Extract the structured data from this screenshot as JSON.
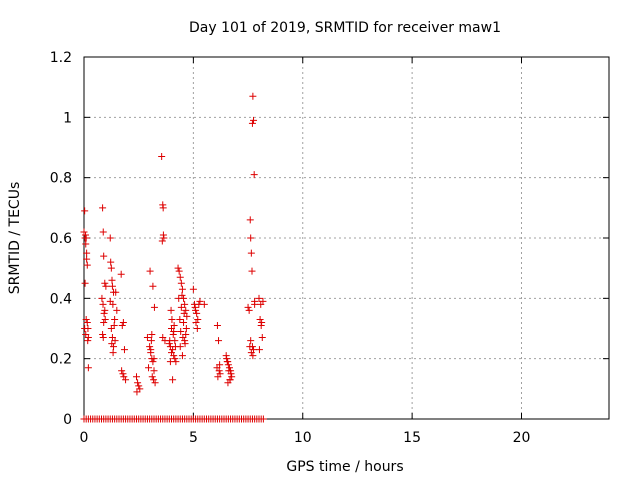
{
  "chart_data": {
    "type": "scatter",
    "title": "Day 101 of 2019, SRMTID for receiver maw1",
    "xlabel": "GPS time / hours",
    "ylabel": "SRMTID / TECUs",
    "xlim": [
      0,
      24
    ],
    "ylim": [
      0,
      1.2
    ],
    "xticks": [
      "0",
      "5",
      "10",
      "15",
      "20"
    ],
    "yticks": [
      "0",
      "0.2",
      "0.4",
      "0.6",
      "0.8",
      "1",
      "1.2"
    ],
    "grid": true,
    "marker": "plus",
    "color": "#dd0000",
    "series": [
      {
        "name": "SRMTID",
        "x": [
          0.0,
          0.03,
          0.05,
          0.08,
          0.1,
          0.12,
          0.15,
          0.18,
          0.2,
          0.05,
          0.1,
          0.15,
          0.2,
          0.08,
          0.03,
          0.12,
          0.07,
          0.17,
          0.85,
          0.88,
          0.9,
          0.95,
          0.82,
          0.87,
          0.92,
          0.97,
          0.9,
          0.85,
          1.0,
          0.95,
          0.88,
          1.2,
          1.22,
          1.25,
          1.28,
          1.3,
          1.35,
          1.32,
          1.4,
          1.38,
          1.25,
          1.3,
          1.27,
          1.42,
          1.35,
          1.2,
          1.45,
          1.5,
          1.33,
          1.7,
          1.75,
          1.8,
          1.85,
          1.72,
          1.78,
          1.82,
          1.9,
          2.4,
          2.45,
          2.5,
          2.55,
          2.42,
          2.9,
          3.0,
          3.05,
          3.1,
          3.15,
          2.95,
          3.2,
          3.12,
          3.18,
          3.25,
          3.08,
          3.02,
          3.15,
          3.22,
          3.1,
          3.05,
          3.2,
          3.55,
          3.6,
          3.62,
          3.65,
          3.58,
          3.63,
          3.6,
          3.7,
          3.9,
          3.95,
          4.0,
          4.05,
          4.1,
          4.15,
          4.2,
          3.92,
          4.0,
          4.08,
          4.12,
          4.18,
          4.05,
          3.98,
          4.02,
          4.1,
          4.15,
          3.95,
          4.3,
          4.35,
          4.4,
          4.45,
          4.5,
          4.55,
          4.6,
          4.65,
          4.7,
          4.38,
          4.48,
          4.58,
          4.68,
          4.42,
          4.52,
          4.62,
          4.33,
          4.45,
          4.55,
          4.65,
          4.4,
          4.5,
          4.6,
          5.0,
          5.05,
          5.1,
          5.15,
          5.2,
          5.3,
          5.12,
          5.25,
          5.08,
          5.18,
          5.5,
          6.1,
          6.15,
          6.2,
          6.18,
          6.12,
          6.22,
          6.08,
          6.5,
          6.55,
          6.6,
          6.65,
          6.7,
          6.75,
          6.58,
          6.68,
          6.52,
          6.62,
          6.72,
          6.57,
          6.67,
          7.5,
          7.55,
          7.6,
          7.62,
          7.65,
          7.68,
          7.7,
          7.72,
          7.75,
          7.78,
          7.8,
          7.58,
          7.65,
          7.7,
          7.75,
          7.8,
          7.62,
          7.72,
          8.0,
          8.05,
          8.1,
          8.15,
          8.02,
          8.08,
          8.12,
          8.18,
          0.0,
          0.1,
          0.2,
          0.3,
          0.4,
          0.5,
          0.6,
          0.7,
          0.8,
          0.9,
          1.0,
          1.1,
          1.2,
          1.3,
          1.4,
          1.5,
          1.6,
          1.7,
          1.8,
          1.9,
          2.0,
          2.1,
          2.2,
          2.3,
          2.4,
          2.5,
          2.6,
          2.7,
          2.8,
          2.9,
          3.0,
          3.1,
          3.2,
          3.3,
          3.4,
          3.5,
          3.6,
          3.7,
          3.8,
          3.9,
          4.0,
          4.1,
          4.2,
          4.3,
          4.4,
          4.5,
          4.6,
          4.7,
          4.8,
          4.9,
          5.0,
          5.1,
          5.2,
          5.3,
          5.4,
          5.5,
          5.6,
          5.7,
          5.8,
          5.9,
          6.0,
          6.1,
          6.2,
          6.3,
          6.4,
          6.5,
          6.6,
          6.7,
          6.8,
          6.9,
          7.0,
          7.1,
          7.2,
          7.3,
          7.4,
          7.5,
          7.6,
          7.7,
          7.8,
          7.9,
          8.0,
          8.1,
          8.2
        ],
        "y": [
          0.62,
          0.69,
          0.6,
          0.58,
          0.6,
          0.53,
          0.51,
          0.3,
          0.27,
          0.45,
          0.33,
          0.32,
          0.17,
          0.28,
          0.3,
          0.55,
          0.61,
          0.26,
          0.7,
          0.62,
          0.54,
          0.45,
          0.4,
          0.38,
          0.35,
          0.33,
          0.32,
          0.28,
          0.44,
          0.36,
          0.27,
          0.6,
          0.52,
          0.5,
          0.46,
          0.44,
          0.42,
          0.38,
          0.33,
          0.31,
          0.3,
          0.27,
          0.25,
          0.26,
          0.24,
          0.39,
          0.42,
          0.36,
          0.22,
          0.48,
          0.31,
          0.32,
          0.23,
          0.16,
          0.15,
          0.14,
          0.13,
          0.14,
          0.12,
          0.11,
          0.1,
          0.09,
          0.27,
          0.24,
          0.22,
          0.2,
          0.19,
          0.17,
          0.16,
          0.14,
          0.13,
          0.12,
          0.26,
          0.49,
          0.44,
          0.37,
          0.28,
          0.23,
          0.2,
          0.87,
          0.71,
          0.7,
          0.6,
          0.59,
          0.61,
          0.27,
          0.26,
          0.25,
          0.24,
          0.22,
          0.23,
          0.21,
          0.2,
          0.19,
          0.26,
          0.3,
          0.28,
          0.31,
          0.24,
          0.13,
          0.36,
          0.33,
          0.29,
          0.26,
          0.19,
          0.5,
          0.49,
          0.47,
          0.45,
          0.43,
          0.4,
          0.38,
          0.36,
          0.34,
          0.33,
          0.41,
          0.35,
          0.3,
          0.29,
          0.27,
          0.25,
          0.4,
          0.37,
          0.32,
          0.28,
          0.24,
          0.21,
          0.26,
          0.43,
          0.38,
          0.36,
          0.35,
          0.33,
          0.39,
          0.32,
          0.38,
          0.37,
          0.3,
          0.38,
          0.31,
          0.26,
          0.18,
          0.16,
          0.14,
          0.15,
          0.17,
          0.21,
          0.19,
          0.18,
          0.17,
          0.16,
          0.14,
          0.12,
          0.13,
          0.2,
          0.16,
          0.15,
          0.19,
          0.13,
          0.37,
          0.36,
          0.66,
          0.6,
          0.55,
          0.49,
          0.98,
          1.07,
          0.99,
          0.81,
          0.39,
          0.24,
          0.22,
          0.24,
          0.23,
          0.38,
          0.26,
          0.21,
          0.4,
          0.33,
          0.31,
          0.27,
          0.23,
          0.38,
          0.32,
          0.39,
          0,
          0,
          0,
          0,
          0,
          0,
          0,
          0,
          0,
          0,
          0,
          0,
          0,
          0,
          0,
          0,
          0,
          0,
          0,
          0,
          0,
          0,
          0,
          0,
          0,
          0,
          0,
          0,
          0,
          0,
          0,
          0,
          0,
          0,
          0,
          0,
          0,
          0,
          0,
          0,
          0,
          0,
          0,
          0,
          0,
          0,
          0,
          0,
          0,
          0,
          0,
          0,
          0,
          0,
          0,
          0,
          0,
          0,
          0,
          0,
          0,
          0,
          0,
          0,
          0,
          0,
          0,
          0,
          0,
          0,
          0,
          0,
          0,
          0,
          0,
          0,
          0,
          0,
          0,
          0,
          0,
          0,
          0
        ]
      }
    ]
  }
}
